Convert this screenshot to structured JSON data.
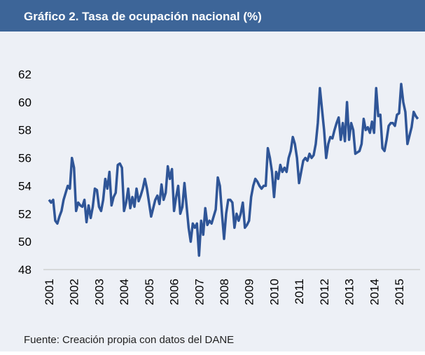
{
  "chart_data": {
    "type": "line",
    "title": "Gráfico 2. Tasa de ocupación nacional (%)",
    "source": "Fuente: Creación propia con datos del DANE",
    "color": "#2f5597",
    "ylim": [
      48,
      62
    ],
    "yticks": [
      48,
      50,
      52,
      54,
      56,
      58,
      60,
      62
    ],
    "categories": [
      "2001",
      null,
      null,
      null,
      null,
      null,
      null,
      null,
      null,
      null,
      null,
      null,
      "2002",
      null,
      null,
      null,
      null,
      null,
      null,
      null,
      null,
      null,
      null,
      null,
      "2003",
      null,
      null,
      null,
      null,
      null,
      null,
      null,
      null,
      null,
      null,
      null,
      "2004",
      null,
      null,
      null,
      null,
      null,
      null,
      null,
      null,
      null,
      null,
      null,
      "2005",
      null,
      null,
      null,
      null,
      null,
      null,
      null,
      null,
      null,
      null,
      null,
      "2006",
      null,
      null,
      null,
      null,
      null,
      null,
      null,
      null,
      null,
      null,
      null,
      "2007",
      null,
      null,
      null,
      null,
      null,
      null,
      null,
      null,
      null,
      null,
      null,
      "2008",
      null,
      null,
      null,
      null,
      null,
      null,
      null,
      null,
      null,
      null,
      null,
      "2009",
      null,
      null,
      null,
      null,
      null,
      null,
      null,
      null,
      null,
      null,
      null,
      "2010",
      null,
      null,
      null,
      null,
      null,
      null,
      null,
      null,
      null,
      null,
      null,
      "2011",
      null,
      null,
      null,
      null,
      null,
      null,
      null,
      null,
      null,
      null,
      null,
      "2012",
      null,
      null,
      null,
      null,
      null,
      null,
      null,
      null,
      null,
      null,
      null,
      "2013",
      null,
      null,
      null,
      null,
      null,
      null,
      null,
      null,
      null,
      null,
      null,
      "2014",
      null,
      null,
      null,
      null,
      null,
      null,
      null,
      null,
      null,
      null,
      null,
      "2015",
      null,
      null,
      null,
      null,
      null,
      null,
      null,
      null,
      null
    ],
    "values": [
      53.0,
      52.8,
      53.0,
      51.5,
      51.3,
      51.8,
      52.2,
      53.0,
      53.5,
      54.0,
      53.8,
      56.0,
      55.3,
      52.2,
      52.8,
      52.6,
      52.5,
      53.0,
      51.4,
      52.6,
      51.7,
      52.5,
      53.8,
      53.7,
      52.5,
      52.2,
      53.0,
      54.5,
      53.8,
      55.0,
      52.6,
      53.2,
      53.5,
      55.5,
      55.6,
      55.3,
      52.2,
      52.8,
      53.8,
      52.4,
      53.2,
      52.5,
      53.8,
      52.9,
      53.3,
      53.8,
      54.5,
      53.8,
      52.8,
      51.8,
      52.4,
      53.0,
      53.3,
      52.7,
      54.1,
      53.0,
      53.5,
      55.4,
      54.5,
      55.2,
      52.2,
      53.2,
      54.0,
      52.0,
      52.5,
      54.2,
      52.6,
      51.0,
      50.0,
      51.3,
      51.0,
      51.3,
      49.0,
      51.5,
      50.5,
      52.4,
      51.2,
      51.5,
      51.3,
      51.8,
      52.3,
      54.6,
      54.0,
      52.0,
      50.2,
      52.0,
      53.0,
      53.0,
      52.8,
      51.0,
      52.0,
      51.5,
      52.0,
      52.8,
      51.0,
      51.2,
      51.5,
      53.2,
      54.0,
      54.5,
      54.3,
      54.0,
      53.8,
      54.0,
      54.0,
      56.7,
      56.0,
      55.0,
      53.2,
      55.0,
      54.5,
      55.5,
      55.0,
      55.3,
      55.0,
      56.0,
      56.5,
      57.5,
      57.0,
      56.0,
      54.2,
      55.0,
      55.8,
      56.0,
      55.8,
      56.3,
      56.0,
      56.2,
      57.0,
      58.5,
      61.0,
      59.5,
      58.0,
      56.0,
      57.0,
      57.5,
      57.4,
      58.0,
      58.5,
      58.9,
      57.3,
      58.5,
      57.2,
      60.0,
      57.3,
      58.5,
      58.0,
      56.3,
      56.4,
      56.5,
      57.0,
      58.8,
      58.0,
      58.2,
      57.8,
      58.6,
      57.8,
      61.0,
      59.0,
      59.1,
      56.7,
      56.5,
      57.3,
      58.3,
      58.5,
      58.5,
      58.3,
      59.1,
      59.2,
      61.3,
      60.0,
      59.3,
      57.0,
      57.6,
      58.2,
      59.3,
      59.0,
      58.8
    ]
  }
}
